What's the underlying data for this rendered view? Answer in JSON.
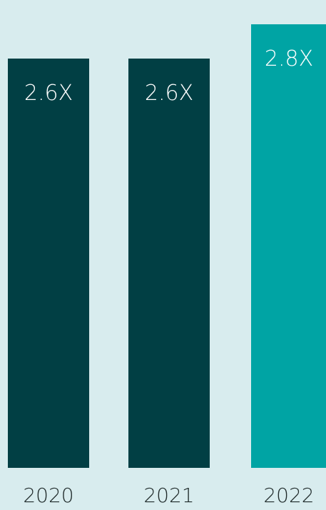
{
  "chart_data": {
    "type": "bar",
    "categories": [
      "2020",
      "2021",
      "2022"
    ],
    "values": [
      2.6,
      2.6,
      2.8
    ],
    "labels": [
      "2.6X",
      "2.6X",
      "2.8X"
    ],
    "colors": [
      "#013f44",
      "#013f44",
      "#00a4a4"
    ],
    "grid": false,
    "legend": "none"
  }
}
